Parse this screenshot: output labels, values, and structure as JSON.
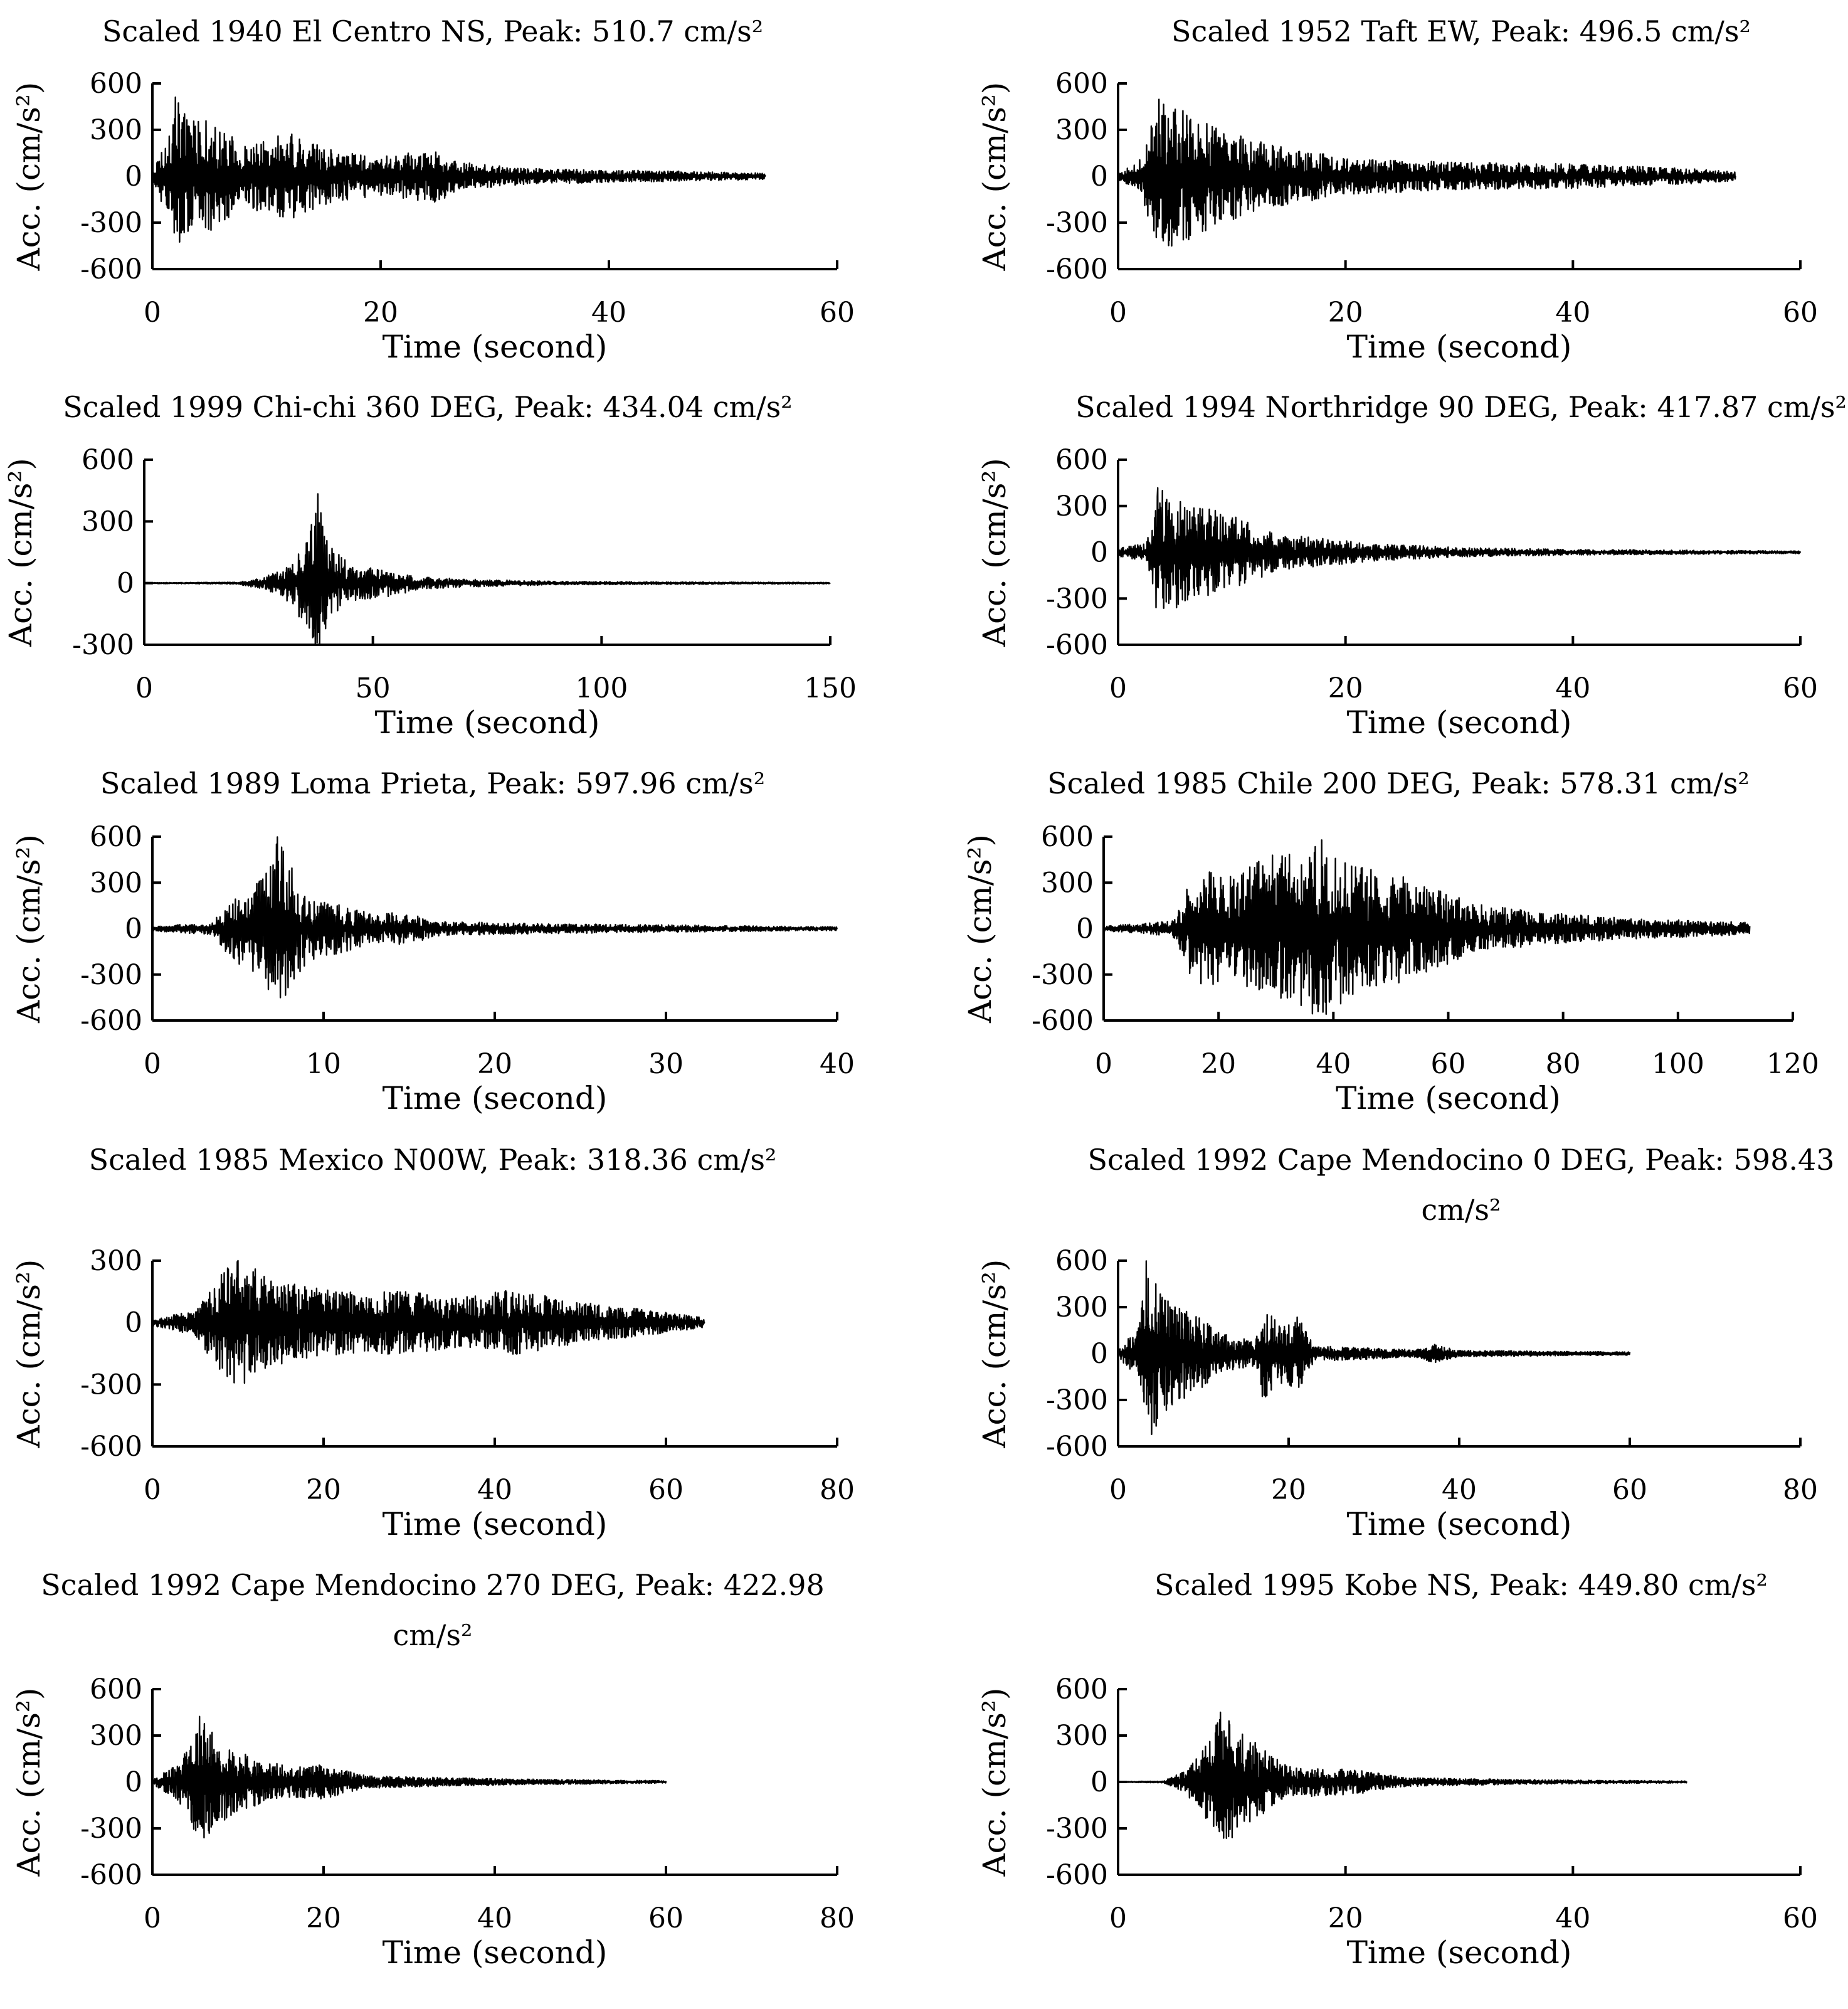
{
  "figure": {
    "caption_hidden": ""
  },
  "chart_data": [
    {
      "type": "line",
      "title": "Scaled 1940 El Centro NS, Peak: 510.7 cm/s²",
      "xlabel": "Time (second)",
      "ylabel": "Acc. (cm/s²)",
      "xlim": [
        0,
        60
      ],
      "ylim": [
        -600,
        600
      ],
      "xticks": [
        0,
        20,
        40,
        60
      ],
      "yticks": [
        600,
        300,
        0,
        -300,
        -600
      ],
      "xtick_labels": [
        "0",
        "20",
        "40",
        "60"
      ],
      "ytick_labels": [
        "600",
        "300",
        "0",
        "-300",
        "-600"
      ],
      "duration": 53.7,
      "peak": 510.7,
      "envelope": [
        [
          0,
          20
        ],
        [
          1.5,
          300
        ],
        [
          2,
          510
        ],
        [
          3,
          380
        ],
        [
          5,
          360
        ],
        [
          8,
          200
        ],
        [
          12,
          280
        ],
        [
          16,
          160
        ],
        [
          20,
          130
        ],
        [
          25,
          170
        ],
        [
          27,
          90
        ],
        [
          33,
          50
        ],
        [
          45,
          35
        ],
        [
          53.7,
          20
        ]
      ],
      "series": [
        {
          "name": "El Centro NS"
        }
      ]
    },
    {
      "type": "line",
      "title": "Scaled 1952 Taft EW, Peak: 496.5 cm/s²",
      "xlabel": "Time (second)",
      "ylabel": "Acc. (cm/s²)",
      "xlim": [
        0,
        60
      ],
      "ylim": [
        -600,
        600
      ],
      "xticks": [
        0,
        20,
        40,
        60
      ],
      "yticks": [
        600,
        300,
        0,
        -300,
        -600
      ],
      "xtick_labels": [
        "0",
        "20",
        "40",
        "60"
      ],
      "ytick_labels": [
        "600",
        "300",
        "0",
        "-300",
        "-600"
      ],
      "duration": 54.3,
      "peak": 496.5,
      "envelope": [
        [
          0,
          20
        ],
        [
          2,
          110
        ],
        [
          3.6,
          496
        ],
        [
          6,
          420
        ],
        [
          9,
          320
        ],
        [
          12,
          230
        ],
        [
          16,
          170
        ],
        [
          20,
          120
        ],
        [
          30,
          90
        ],
        [
          40,
          80
        ],
        [
          50,
          50
        ],
        [
          54.3,
          30
        ]
      ],
      "series": [
        {
          "name": "Taft EW"
        }
      ]
    },
    {
      "type": "line",
      "title": "Scaled 1999 Chi-chi 360 DEG, Peak: 434.04 cm/s²",
      "xlabel": "Time (second)",
      "ylabel": "Acc. (cm/s²)",
      "xlim": [
        0,
        150
      ],
      "ylim": [
        -300,
        600
      ],
      "xticks": [
        0,
        50,
        100,
        150
      ],
      "yticks": [
        600,
        300,
        0,
        -300
      ],
      "xtick_labels": [
        "0",
        "50",
        "100",
        "150"
      ],
      "ytick_labels": [
        "600",
        "300",
        "0",
        "-300"
      ],
      "duration": 150,
      "peak": 434.04,
      "envelope": [
        [
          0,
          2
        ],
        [
          20,
          4
        ],
        [
          25,
          25
        ],
        [
          30,
          60
        ],
        [
          33,
          140
        ],
        [
          36,
          230
        ],
        [
          38,
          434
        ],
        [
          40,
          200
        ],
        [
          45,
          90
        ],
        [
          55,
          60
        ],
        [
          60,
          30
        ],
        [
          70,
          20
        ],
        [
          90,
          8
        ],
        [
          150,
          3
        ]
      ],
      "series": [
        {
          "name": "Chi-chi 360 DEG"
        }
      ]
    },
    {
      "type": "line",
      "title": "Scaled 1994 Northridge 90 DEG, Peak: 417.87 cm/s²",
      "xlabel": "Time (second)",
      "ylabel": "Acc. (cm/s²)",
      "xlim": [
        0,
        60
      ],
      "ylim": [
        -600,
        600
      ],
      "xticks": [
        0,
        20,
        40,
        60
      ],
      "yticks": [
        600,
        300,
        0,
        -300,
        -600
      ],
      "xtick_labels": [
        "0",
        "20",
        "40",
        "60"
      ],
      "ytick_labels": [
        "600",
        "300",
        "0",
        "-300",
        "-600"
      ],
      "duration": 60,
      "peak": 417.87,
      "envelope": [
        [
          0,
          25
        ],
        [
          2.5,
          60
        ],
        [
          3.5,
          418
        ],
        [
          6,
          330
        ],
        [
          10,
          240
        ],
        [
          14,
          120
        ],
        [
          18,
          90
        ],
        [
          22,
          60
        ],
        [
          30,
          30
        ],
        [
          40,
          18
        ],
        [
          60,
          8
        ]
      ],
      "series": [
        {
          "name": "Northridge 90 DEG"
        }
      ]
    },
    {
      "type": "line",
      "title": "Scaled 1989 Loma Prieta, Peak: 597.96 cm/s²",
      "xlabel": "Time (second)",
      "ylabel": "Acc. (cm/s²)",
      "xlim": [
        0,
        40
      ],
      "ylim": [
        -600,
        600
      ],
      "xticks": [
        0,
        10,
        20,
        30,
        40
      ],
      "yticks": [
        600,
        300,
        0,
        -300,
        -600
      ],
      "xtick_labels": [
        "0",
        "10",
        "20",
        "30",
        "40"
      ],
      "ytick_labels": [
        "600",
        "300",
        "0",
        "-300",
        "-600"
      ],
      "duration": 40,
      "peak": 597.96,
      "envelope": [
        [
          0,
          15
        ],
        [
          3.5,
          40
        ],
        [
          4.5,
          200
        ],
        [
          6.5,
          340
        ],
        [
          7.3,
          598
        ],
        [
          9,
          220
        ],
        [
          11,
          160
        ],
        [
          13,
          90
        ],
        [
          14.5,
          110
        ],
        [
          17,
          45
        ],
        [
          25,
          30
        ],
        [
          40,
          12
        ]
      ],
      "series": [
        {
          "name": "Loma Prieta"
        }
      ]
    },
    {
      "type": "line",
      "title": "Scaled 1985 Chile 200 DEG, Peak: 578.31 cm/s²",
      "xlabel": "Time (second)",
      "ylabel": "Acc. (cm/s²)",
      "xlim": [
        0,
        120
      ],
      "ylim": [
        -600,
        600
      ],
      "xticks": [
        0,
        20,
        40,
        60,
        80,
        100,
        120
      ],
      "yticks": [
        600,
        300,
        0,
        -300,
        -600
      ],
      "xtick_labels": [
        "0",
        "20",
        "40",
        "60",
        "80",
        "100",
        "120"
      ],
      "ytick_labels": [
        "600",
        "300",
        "0",
        "-300",
        "-600"
      ],
      "duration": 112.5,
      "peak": 578.31,
      "envelope": [
        [
          0,
          15
        ],
        [
          12,
          50
        ],
        [
          16,
          390
        ],
        [
          22,
          340
        ],
        [
          29,
          480
        ],
        [
          38,
          578
        ],
        [
          45,
          400
        ],
        [
          52,
          350
        ],
        [
          60,
          230
        ],
        [
          65,
          160
        ],
        [
          75,
          110
        ],
        [
          90,
          70
        ],
        [
          112.5,
          40
        ]
      ],
      "series": [
        {
          "name": "Chile 200 DEG"
        }
      ]
    },
    {
      "type": "line",
      "title": "Scaled 1985 Mexico N00W, Peak: 318.36 cm/s²",
      "xlabel": "Time (second)",
      "ylabel": "Acc. (cm/s²)",
      "xlim": [
        0,
        80
      ],
      "ylim": [
        -600,
        300
      ],
      "xticks": [
        0,
        20,
        40,
        60,
        80
      ],
      "yticks": [
        300,
        0,
        -300,
        -600
      ],
      "xtick_labels": [
        "0",
        "20",
        "40",
        "60",
        "80"
      ],
      "ytick_labels": [
        "300",
        "0",
        "-300",
        "-600"
      ],
      "duration": 64.5,
      "peak": 318.36,
      "envelope": [
        [
          0,
          15
        ],
        [
          5,
          60
        ],
        [
          7,
          190
        ],
        [
          10,
          318
        ],
        [
          14,
          210
        ],
        [
          20,
          160
        ],
        [
          30,
          150
        ],
        [
          36,
          120
        ],
        [
          42,
          165
        ],
        [
          50,
          100
        ],
        [
          58,
          60
        ],
        [
          64.5,
          25
        ]
      ],
      "series": [
        {
          "name": "Mexico N00W"
        }
      ]
    },
    {
      "type": "line",
      "title": "Scaled 1992 Cape Mendocino 0 DEG, Peak: 598.43 cm/s²",
      "xlabel": "Time (second)",
      "ylabel": "Acc. (cm/s²)",
      "xlim": [
        0,
        80
      ],
      "ylim": [
        -600,
        600
      ],
      "xticks": [
        0,
        20,
        40,
        60,
        80
      ],
      "yticks": [
        600,
        300,
        0,
        -300,
        -600
      ],
      "xtick_labels": [
        "0",
        "20",
        "40",
        "60",
        "80"
      ],
      "ytick_labels": [
        "600",
        "300",
        "0",
        "-300",
        "-600"
      ],
      "duration": 60,
      "peak": 598.43,
      "envelope": [
        [
          0,
          20
        ],
        [
          2.5,
          180
        ],
        [
          3.3,
          598
        ],
        [
          5,
          420
        ],
        [
          8,
          300
        ],
        [
          12,
          130
        ],
        [
          16,
          80
        ],
        [
          17,
          300
        ],
        [
          19,
          200
        ],
        [
          21,
          250
        ],
        [
          23,
          50
        ],
        [
          35,
          25
        ],
        [
          37,
          60
        ],
        [
          40,
          20
        ],
        [
          60,
          10
        ]
      ],
      "series": [
        {
          "name": "Cape Mendocino 0 DEG"
        }
      ]
    },
    {
      "type": "line",
      "title": "Scaled 1992 Cape Mendocino 270 DEG, Peak: 422.98 cm/s²",
      "xlabel": "Time (second)",
      "ylabel": "Acc. (cm/s²)",
      "xlim": [
        0,
        80
      ],
      "ylim": [
        -600,
        600
      ],
      "xticks": [
        0,
        20,
        40,
        60,
        80
      ],
      "yticks": [
        600,
        300,
        0,
        -300,
        -600
      ],
      "xtick_labels": [
        "0",
        "20",
        "40",
        "60",
        "80"
      ],
      "ytick_labels": [
        "600",
        "300",
        "0",
        "-300",
        "-600"
      ],
      "duration": 60,
      "peak": 422.98,
      "envelope": [
        [
          0,
          15
        ],
        [
          3,
          120
        ],
        [
          4.5,
          260
        ],
        [
          5.5,
          423
        ],
        [
          8,
          260
        ],
        [
          12,
          160
        ],
        [
          16,
          100
        ],
        [
          20,
          110
        ],
        [
          25,
          40
        ],
        [
          40,
          20
        ],
        [
          60,
          8
        ]
      ],
      "series": [
        {
          "name": "Cape Mendocino 270 DEG"
        }
      ]
    },
    {
      "type": "line",
      "title": "Scaled 1995 Kobe NS, Peak: 449.80 cm/s²",
      "xlabel": "Time (second)",
      "ylabel": "Acc. (cm/s²)",
      "xlim": [
        0,
        60
      ],
      "ylim": [
        -600,
        600
      ],
      "xticks": [
        0,
        20,
        40,
        60
      ],
      "yticks": [
        600,
        300,
        0,
        -300,
        -600
      ],
      "xtick_labels": [
        "0",
        "20",
        "40",
        "60"
      ],
      "ytick_labels": [
        "600",
        "300",
        "0",
        "-300",
        "-600"
      ],
      "duration": 50,
      "peak": 449.8,
      "envelope": [
        [
          0,
          3
        ],
        [
          4,
          5
        ],
        [
          6,
          80
        ],
        [
          8,
          260
        ],
        [
          9,
          450
        ],
        [
          11,
          320
        ],
        [
          13,
          200
        ],
        [
          15,
          100
        ],
        [
          18,
          90
        ],
        [
          21,
          80
        ],
        [
          25,
          30
        ],
        [
          35,
          15
        ],
        [
          50,
          6
        ]
      ],
      "series": [
        {
          "name": "Kobe NS"
        }
      ]
    }
  ]
}
